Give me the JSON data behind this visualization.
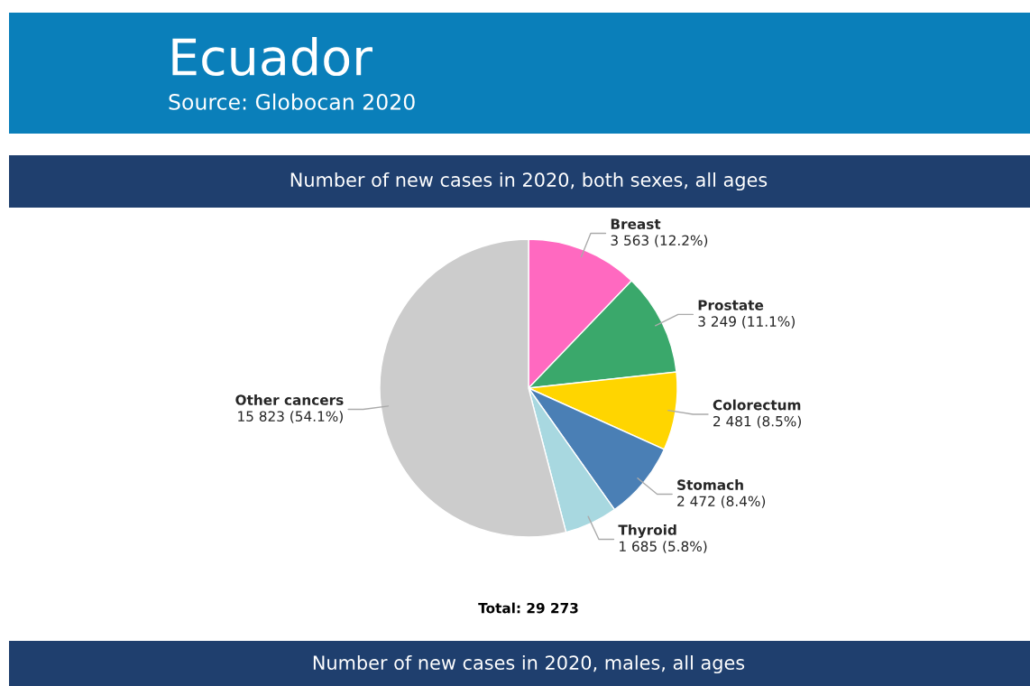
{
  "chart_data": {
    "type": "pie",
    "title": "Ecuador",
    "subtitle": "Source: Globocan 2020",
    "annotations": [
      "Number of new cases in 2020, both sexes, all ages",
      "Total: 29 273",
      "Number of new cases in 2020, males, all ages"
    ],
    "categories": [
      "Breast",
      "Prostate",
      "Colorectum",
      "Stomach",
      "Thyroid",
      "Other cancers"
    ],
    "values": [
      3563,
      3249,
      2481,
      2472,
      1685,
      15823
    ],
    "value_labels": [
      "3 563 (12.2%)",
      "3 249 (11.1%)",
      "2 481 (8.5%)",
      "2 472 (8.4%)",
      "1 685 (5.8%)",
      "15 823 (54.1%)"
    ],
    "colors": [
      "#ff69c0",
      "#3aa86b",
      "#ffd500",
      "#4a7fb5",
      "#a8d8e0",
      "#cccccc"
    ],
    "legend": false
  }
}
